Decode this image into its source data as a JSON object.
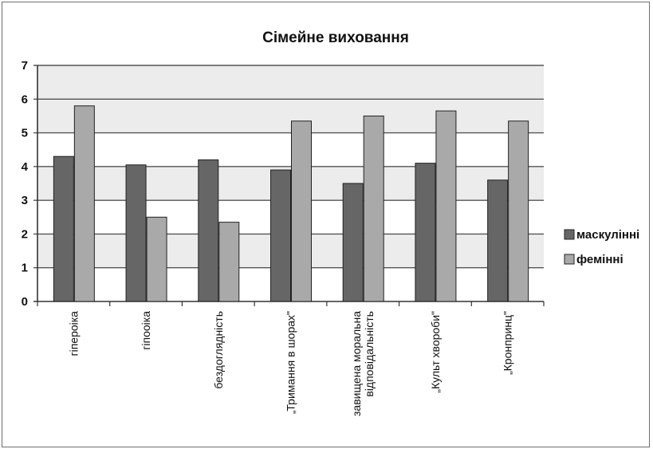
{
  "chart_data": {
    "type": "bar",
    "title": "Сімейне виховання",
    "xlabel": "",
    "ylabel": "",
    "ylim": [
      0,
      7
    ],
    "yticks": [
      0,
      1,
      2,
      3,
      4,
      5,
      6,
      7
    ],
    "grid": true,
    "legend_position": "right",
    "categories": [
      [
        "гіпероіка"
      ],
      [
        "гіпооіка"
      ],
      [
        "бездоглядність"
      ],
      [
        "„Тримання в шорах\""
      ],
      [
        "завищена моральна",
        "відповідальність"
      ],
      [
        "„Культ хвороби\""
      ],
      [
        "„Кронпринц\""
      ]
    ],
    "series": [
      {
        "name": "маскулінні",
        "color": "#666666",
        "values": [
          4.3,
          4.05,
          4.2,
          3.9,
          3.5,
          4.1,
          3.6
        ]
      },
      {
        "name": "фемінні",
        "color": "#a9a9a9",
        "values": [
          5.8,
          2.5,
          2.35,
          5.35,
          5.5,
          5.65,
          5.35
        ]
      }
    ],
    "plot_band_color": "#ececec"
  }
}
